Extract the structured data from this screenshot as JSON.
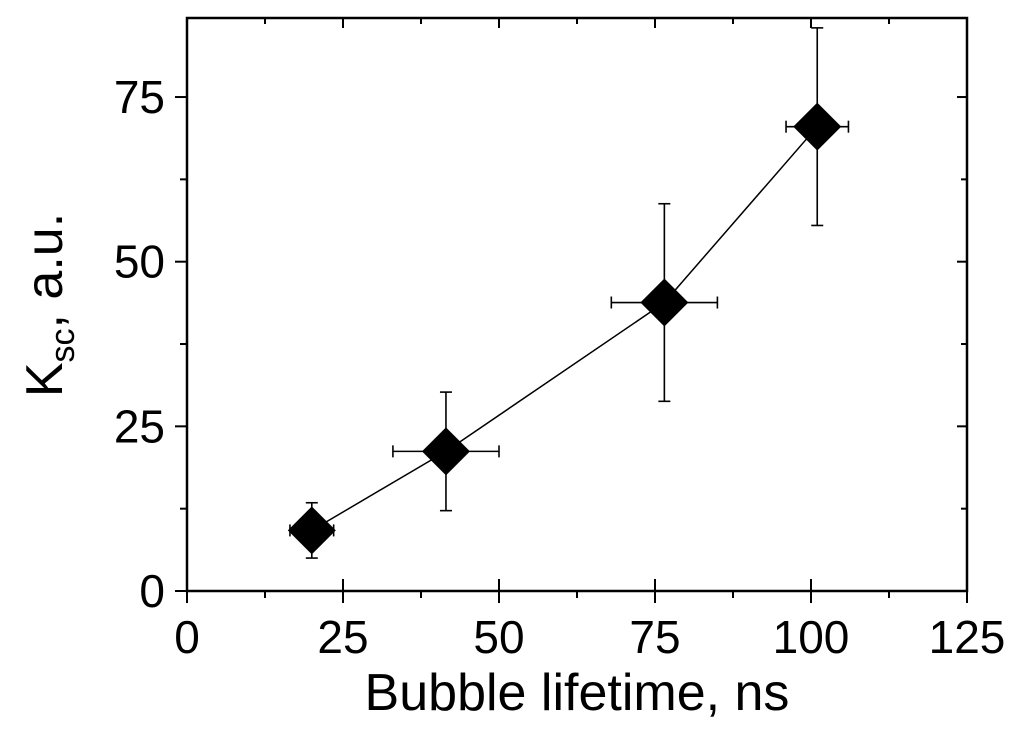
{
  "chart_data": {
    "type": "scatter",
    "title": "",
    "xlabel": "Bubble lifetime, ns",
    "ylabel_main": "K",
    "ylabel_sub": "sc",
    "ylabel_rest": ", a.u.",
    "xlim": [
      0,
      125
    ],
    "ylim": [
      0,
      87
    ],
    "xticks": [
      0,
      25,
      50,
      75,
      100,
      125
    ],
    "yticks": [
      0,
      25,
      50,
      75
    ],
    "xtick_labels": [
      "0",
      "25",
      "50",
      "75",
      "100",
      "125"
    ],
    "ytick_labels": [
      "0",
      "25",
      "50",
      "75"
    ],
    "grid": false,
    "marker": "diamond",
    "connect_points": true,
    "series": [
      {
        "points": [
          {
            "x": 20,
            "y": 9.2,
            "xerr": 3.5,
            "yerr": 4.2
          },
          {
            "x": 41.5,
            "y": 21.2,
            "xerr": 8.5,
            "yerr": 9.0
          },
          {
            "x": 76.5,
            "y": 43.8,
            "xerr": 8.5,
            "yerr": 15.0
          },
          {
            "x": 101,
            "y": 70.5,
            "xerr": 5.0,
            "yerr": 15.0
          }
        ]
      }
    ]
  }
}
